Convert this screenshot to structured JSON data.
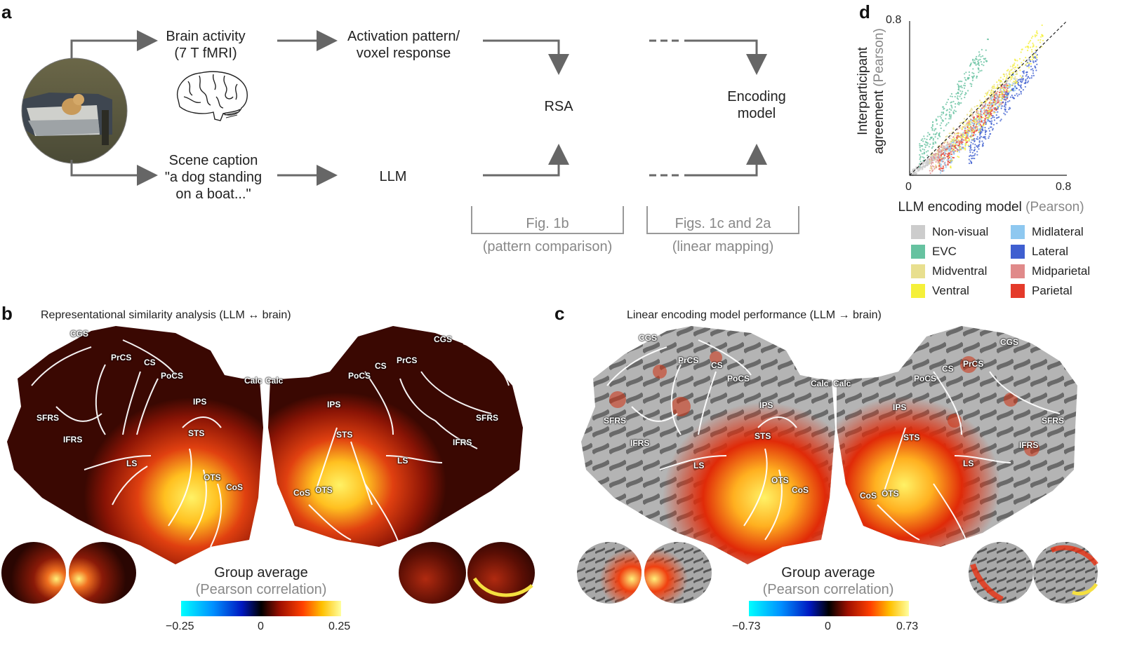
{
  "panel_a": {
    "letter": "a",
    "brain_activity": [
      "Brain activity",
      "(7 T fMRI)"
    ],
    "activation": [
      "Activation pattern/",
      "voxel response"
    ],
    "caption": [
      "Scene caption",
      "\"a dog standing",
      "on a boat...\""
    ],
    "llm": "LLM",
    "rsa": "RSA",
    "encoding": [
      "Encoding",
      "model"
    ],
    "fig1b": "Fig. 1b",
    "fig1b_sub": "(pattern comparison)",
    "fig1c": "Figs. 1c and 2a",
    "fig1c_sub": "(linear mapping)"
  },
  "panel_b": {
    "letter": "b",
    "title": "Representational similarity analysis  (LLM ↔ brain)",
    "group_avg": "Group average",
    "metric": "(Pearson correlation)",
    "cbar_min": "−0.25",
    "cbar_mid": "0",
    "cbar_max": "0.25"
  },
  "panel_c": {
    "letter": "c",
    "title": "Linear encoding model performance (LLM → brain)",
    "group_avg": "Group average",
    "metric": "(Pearson correlation)",
    "cbar_min": "−0.73",
    "cbar_mid": "0",
    "cbar_max": "0.73"
  },
  "sulci": {
    "cgs": "CGS",
    "prcs": "PrCS",
    "cs": "CS",
    "pocs": "PoCS",
    "calc": "Calc",
    "sfrs": "SFRS",
    "ifrs": "IFRS",
    "ips": "IPS",
    "sts": "STS",
    "ls": "LS",
    "ots": "OTS",
    "cos": "CoS"
  },
  "panel_d": {
    "letter": "d",
    "ylabel_main": [
      "Interparticipant",
      "agreement"
    ],
    "ylabel_unit": "(Pearson)",
    "xlabel_main": "LLM encoding model",
    "xlabel_unit": "(Pearson)",
    "legend": [
      {
        "label": "Non-visual",
        "color": "#cccccc"
      },
      {
        "label": "EVC",
        "color": "#66c2a0"
      },
      {
        "label": "Midventral",
        "color": "#e8df8f"
      },
      {
        "label": "Ventral",
        "color": "#f5f03a"
      },
      {
        "label": "Midlateral",
        "color": "#8ec8f0"
      },
      {
        "label": "Lateral",
        "color": "#3f5fd0"
      },
      {
        "label": "Midparietal",
        "color": "#e08a8a"
      },
      {
        "label": "Parietal",
        "color": "#e43a2a"
      }
    ]
  },
  "chart_data": {
    "type": "scatter",
    "title": "",
    "xlabel": "LLM encoding model (Pearson)",
    "ylabel": "Interparticipant agreement (Pearson)",
    "xlim": [
      0,
      0.8
    ],
    "ylim": [
      0,
      0.8
    ],
    "x_ticks": [
      "0",
      "0.8"
    ],
    "y_ticks": [
      "0.8"
    ],
    "reference_line": "y = x",
    "series": [
      {
        "name": "Non-visual",
        "color": "#cccccc",
        "x_range": [
          0.0,
          0.2
        ],
        "y_range": [
          0.0,
          0.15
        ]
      },
      {
        "name": "EVC",
        "color": "#66c2a0",
        "x_range": [
          0.05,
          0.4
        ],
        "y_range": [
          0.1,
          0.66
        ]
      },
      {
        "name": "Midventral",
        "color": "#e8df8f",
        "x_range": [
          0.1,
          0.55
        ],
        "y_range": [
          0.05,
          0.55
        ]
      },
      {
        "name": "Ventral",
        "color": "#f5f03a",
        "x_range": [
          0.2,
          0.68
        ],
        "y_range": [
          0.1,
          0.72
        ]
      },
      {
        "name": "Midlateral",
        "color": "#8ec8f0",
        "x_range": [
          0.15,
          0.55
        ],
        "y_range": [
          0.05,
          0.5
        ]
      },
      {
        "name": "Lateral",
        "color": "#3f5fd0",
        "x_range": [
          0.3,
          0.65
        ],
        "y_range": [
          0.1,
          0.6
        ]
      },
      {
        "name": "Midparietal",
        "color": "#e08a8a",
        "x_range": [
          0.1,
          0.5
        ],
        "y_range": [
          0.05,
          0.45
        ]
      },
      {
        "name": "Parietal",
        "color": "#e43a2a",
        "x_range": [
          0.15,
          0.5
        ],
        "y_range": [
          0.05,
          0.45
        ]
      }
    ]
  }
}
